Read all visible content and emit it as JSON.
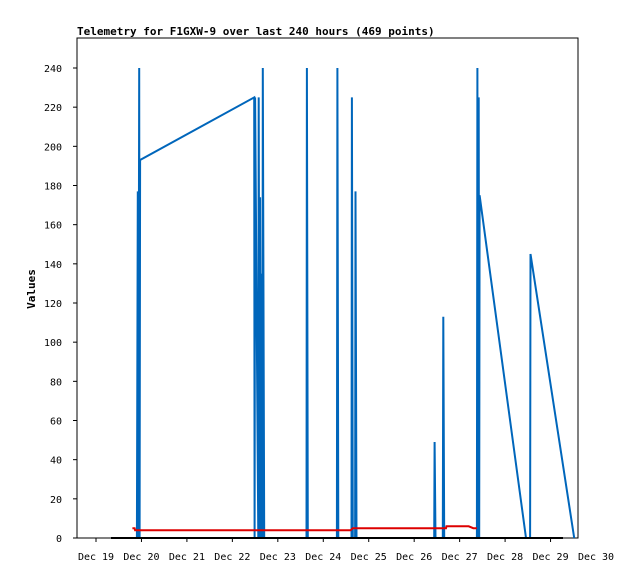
{
  "chart_data": {
    "type": "line",
    "title": "Telemetry for F1GXW-9 over last 240 hours (469 points)",
    "xlabel": "",
    "ylabel": "Values",
    "xlim": [
      19,
      30
    ],
    "ylim": [
      0,
      250
    ],
    "x_unit": "day of December",
    "x_ticks": [
      19,
      20,
      21,
      22,
      23,
      24,
      25,
      26,
      27,
      28,
      29,
      30
    ],
    "x_tick_labels": [
      "Dec 19",
      "Dec 20",
      "Dec 21",
      "Dec 22",
      "Dec 23",
      "Dec 24",
      "Dec 25",
      "Dec 26",
      "Dec 27",
      "Dec 28",
      "Dec 29",
      "Dec 30"
    ],
    "y_ticks": [
      0,
      20,
      40,
      60,
      80,
      100,
      120,
      140,
      160,
      180,
      200,
      220,
      240
    ],
    "grid": false,
    "legend": "none",
    "series": [
      {
        "color": "#0066bb",
        "x": [
          19.9,
          19.92,
          19.93,
          19.95,
          19.96,
          19.97,
          22.48,
          22.49,
          22.5,
          22.57,
          22.58,
          22.6,
          22.61,
          22.63,
          22.64,
          22.66,
          22.67,
          22.7,
          23.63,
          23.64,
          23.66,
          24.3,
          24.31,
          24.33,
          24.62,
          24.63,
          24.65,
          24.7,
          24.71,
          24.73,
          26.44,
          26.45,
          26.47,
          26.63,
          26.64,
          26.66,
          27.38,
          27.39,
          27.4,
          27.42,
          27.43,
          27.44,
          28.46,
          28.55,
          28.56,
          29.52
        ],
        "y": [
          0,
          177,
          0,
          240,
          0,
          193,
          225,
          0,
          225,
          0,
          225,
          0,
          174,
          0,
          135,
          0,
          240,
          0,
          0,
          240,
          0,
          0,
          240,
          0,
          0,
          225,
          0,
          0,
          177,
          0,
          0,
          49,
          0,
          0,
          113,
          0,
          0,
          240,
          0,
          225,
          0,
          175,
          0,
          0,
          145,
          0
        ]
      },
      {
        "color": "#dd0000",
        "x": [
          19.8,
          19.85,
          19.86,
          20.5,
          21.5,
          22.5,
          23.5,
          24.5,
          24.6,
          24.65,
          24.7,
          25.5,
          26.5,
          26.7,
          26.71,
          26.9,
          27.2,
          27.3,
          27.38
        ],
        "y": [
          5,
          5,
          4,
          4,
          4,
          4,
          4,
          4,
          4,
          5,
          5,
          5,
          5,
          5,
          6,
          6,
          6,
          5,
          5
        ]
      }
    ]
  }
}
